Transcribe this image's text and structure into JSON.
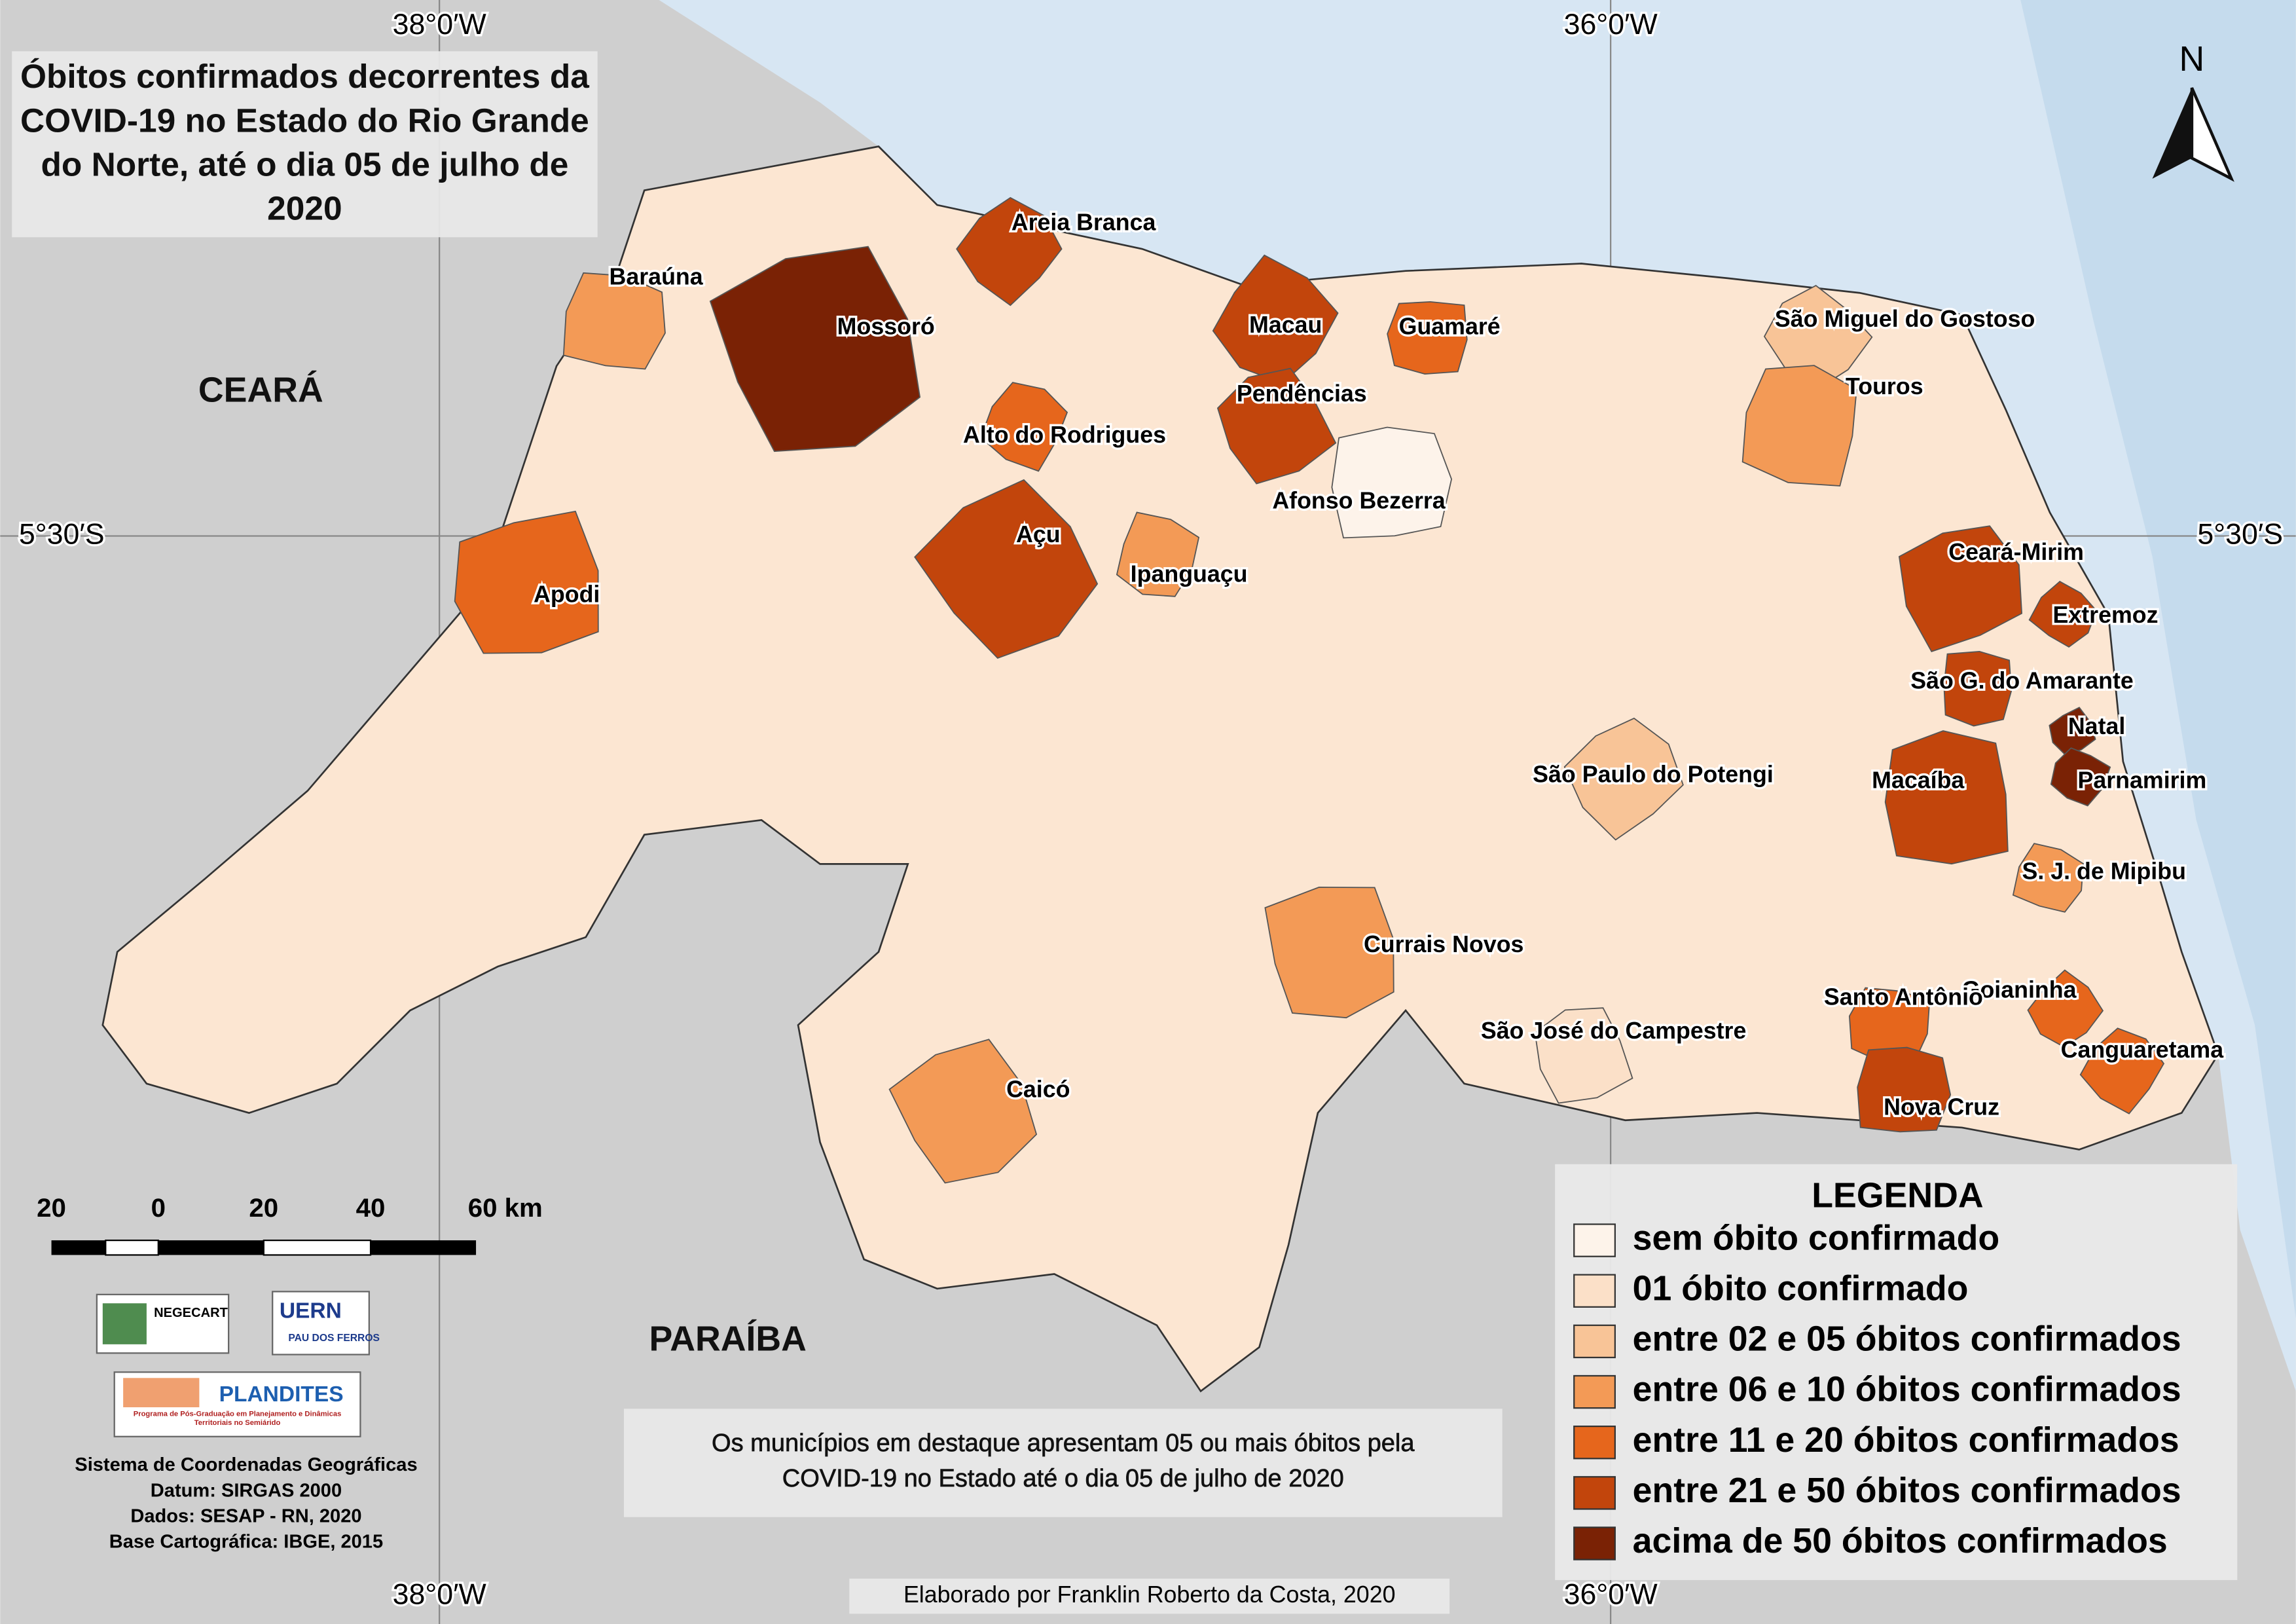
{
  "title": "Óbitos confirmados decorrentes da COVID-19 no Estado do Rio Grande do Norte, até o dia 05 de julho de 2020",
  "grid_labels": {
    "top": [
      "38°0′W",
      "36°0′W"
    ],
    "bottom": [
      "38°0′W",
      "36°0′W"
    ],
    "left": "5°30′S",
    "right": "5°30′S"
  },
  "regions": [
    "CEARÁ",
    "PARAÍBA"
  ],
  "north": "N",
  "legend": {
    "title": "LEGENDA",
    "items": [
      {
        "label": "sem óbito confirmado",
        "color": "#fdf3ea"
      },
      {
        "label": "01 óbito confirmado",
        "color": "#fbe0c8"
      },
      {
        "label": "entre 02 e 05 óbitos confirmados",
        "color": "#f8c497"
      },
      {
        "label": "entre 06 e 10 óbitos confirmados",
        "color": "#f39a56"
      },
      {
        "label": "entre 11 e 20 óbitos confirmados",
        "color": "#e6661c"
      },
      {
        "label": "entre 21 e 50 óbitos confirmados",
        "color": "#c2450c"
      },
      {
        "label": "acima de 50 óbitos confirmados",
        "color": "#7a2205"
      }
    ]
  },
  "municipalities": [
    {
      "name": "Areia Branca",
      "class": 5
    },
    {
      "name": "Baraúna",
      "class": 3
    },
    {
      "name": "Mossoró",
      "class": 6
    },
    {
      "name": "Macau",
      "class": 5
    },
    {
      "name": "Guamaré",
      "class": 4
    },
    {
      "name": "Pendências",
      "class": 5
    },
    {
      "name": "Alto do Rodrigues",
      "class": 4
    },
    {
      "name": "Afonso Bezerra",
      "class": 0
    },
    {
      "name": "Açu",
      "class": 5
    },
    {
      "name": "Ipanguaçu",
      "class": 3
    },
    {
      "name": "Apodi",
      "class": 4
    },
    {
      "name": "São Miguel do Gostoso",
      "class": 2
    },
    {
      "name": "Touros",
      "class": 3
    },
    {
      "name": "Ceará-Mirim",
      "class": 5
    },
    {
      "name": "Extremoz",
      "class": 5
    },
    {
      "name": "São G. do Amarante",
      "class": 5
    },
    {
      "name": "Natal",
      "class": 6
    },
    {
      "name": "Parnamirim",
      "class": 6
    },
    {
      "name": "Macaíba",
      "class": 5
    },
    {
      "name": "São Paulo do Potengi",
      "class": 2
    },
    {
      "name": "S. J. de Mipibu",
      "class": 3
    },
    {
      "name": "Currais Novos",
      "class": 3
    },
    {
      "name": "Goianinha",
      "class": 4
    },
    {
      "name": "Santo Antônio",
      "class": 4
    },
    {
      "name": "São José do Campestre",
      "class": 1
    },
    {
      "name": "Canguaretama",
      "class": 4
    },
    {
      "name": "Nova Cruz",
      "class": 5
    },
    {
      "name": "Caicó",
      "class": 3
    }
  ],
  "scale_bar": [
    "20",
    "0",
    "20",
    "40",
    "60 km"
  ],
  "logos": [
    "NEGECART",
    "UERN",
    "PAU DOS FERROS",
    "PLANDITES",
    "Programa de Pós-Graduação em Planejamento e Dinâmicas Territoriais no Semiárido"
  ],
  "note": "Os municípios em destaque apresentam 05 ou mais óbitos pela COVID-19 no Estado até o dia 05 de julho de 2020",
  "credits": [
    "Sistema de Coordenadas Geográficas",
    "Datum: SIRGAS 2000",
    "Dados: SESAP - RN, 2020",
    "Base Cartográfica: IBGE, 2015"
  ],
  "author": "Elaborado por Franklin Roberto da Costa, 2020"
}
